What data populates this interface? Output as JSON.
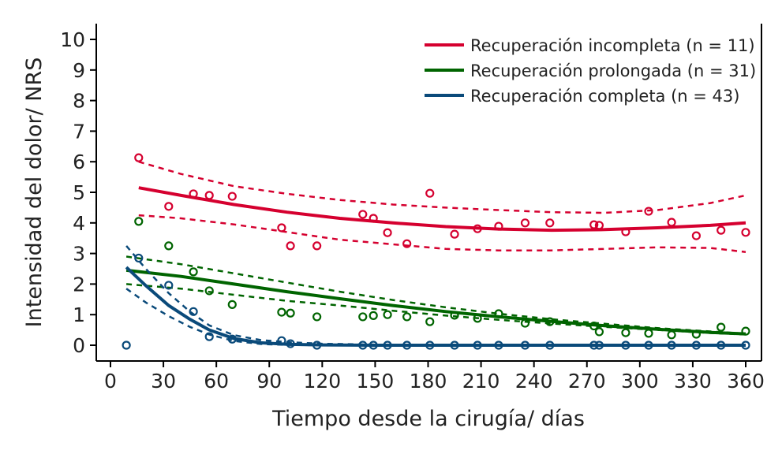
{
  "chart_data": {
    "type": "scatter",
    "title": "",
    "xlabel": "Tiempo desde la cirugía/ días",
    "ylabel": "Intensidad del dolor/ NRS",
    "xlim": [
      -8,
      372
    ],
    "ylim": [
      -0.5,
      10.5
    ],
    "xticks": [
      0,
      30,
      60,
      90,
      120,
      150,
      180,
      210,
      240,
      270,
      300,
      330,
      360
    ],
    "yticks": [
      0,
      1,
      2,
      3,
      4,
      5,
      6,
      7,
      8,
      9,
      10
    ],
    "grid": false,
    "legend_position": "top-right",
    "series": [
      {
        "name": "Recuperación incompleta (n = 11)",
        "color": "#d5002f",
        "points": [
          [
            16,
            6.13
          ],
          [
            33,
            4.54
          ],
          [
            47,
            4.95
          ],
          [
            56,
            4.9
          ],
          [
            69,
            4.87
          ],
          [
            97,
            3.84
          ],
          [
            102,
            3.25
          ],
          [
            117,
            3.25
          ],
          [
            143,
            4.28
          ],
          [
            149,
            4.15
          ],
          [
            157,
            3.68
          ],
          [
            168,
            3.32
          ],
          [
            181,
            4.97
          ],
          [
            195,
            3.63
          ],
          [
            208,
            3.81
          ],
          [
            220,
            3.89
          ],
          [
            235,
            4.0
          ],
          [
            249,
            4.0
          ],
          [
            274,
            3.94
          ],
          [
            277,
            3.92
          ],
          [
            292,
            3.71
          ],
          [
            305,
            4.38
          ],
          [
            318,
            4.02
          ],
          [
            332,
            3.58
          ],
          [
            346,
            3.76
          ],
          [
            360,
            3.69
          ]
        ],
        "fit": [
          [
            16,
            5.15
          ],
          [
            40,
            4.9
          ],
          [
            70,
            4.6
          ],
          [
            100,
            4.35
          ],
          [
            130,
            4.15
          ],
          [
            160,
            4.0
          ],
          [
            190,
            3.88
          ],
          [
            220,
            3.8
          ],
          [
            250,
            3.76
          ],
          [
            280,
            3.78
          ],
          [
            310,
            3.84
          ],
          [
            340,
            3.92
          ],
          [
            360,
            4.0
          ]
        ],
        "ci_upper": [
          [
            16,
            6.0
          ],
          [
            40,
            5.6
          ],
          [
            70,
            5.2
          ],
          [
            100,
            4.95
          ],
          [
            130,
            4.75
          ],
          [
            160,
            4.6
          ],
          [
            190,
            4.5
          ],
          [
            220,
            4.42
          ],
          [
            250,
            4.35
          ],
          [
            280,
            4.33
          ],
          [
            310,
            4.42
          ],
          [
            340,
            4.65
          ],
          [
            360,
            4.9
          ]
        ],
        "ci_lower": [
          [
            16,
            4.25
          ],
          [
            40,
            4.15
          ],
          [
            70,
            3.95
          ],
          [
            100,
            3.7
          ],
          [
            130,
            3.45
          ],
          [
            160,
            3.3
          ],
          [
            190,
            3.15
          ],
          [
            220,
            3.1
          ],
          [
            250,
            3.1
          ],
          [
            280,
            3.15
          ],
          [
            310,
            3.2
          ],
          [
            340,
            3.18
          ],
          [
            360,
            3.05
          ]
        ]
      },
      {
        "name": "Recuperación prolongada (n = 31)",
        "color": "#006400",
        "points": [
          [
            16,
            4.05
          ],
          [
            33,
            3.25
          ],
          [
            47,
            2.4
          ],
          [
            56,
            1.78
          ],
          [
            69,
            1.33
          ],
          [
            97,
            1.08
          ],
          [
            102,
            1.05
          ],
          [
            117,
            0.93
          ],
          [
            143,
            0.93
          ],
          [
            149,
            0.97
          ],
          [
            157,
            1.0
          ],
          [
            168,
            0.93
          ],
          [
            181,
            0.77
          ],
          [
            195,
            0.98
          ],
          [
            208,
            0.88
          ],
          [
            220,
            1.03
          ],
          [
            235,
            0.72
          ],
          [
            249,
            0.77
          ],
          [
            274,
            0.63
          ],
          [
            277,
            0.44
          ],
          [
            292,
            0.41
          ],
          [
            305,
            0.39
          ],
          [
            318,
            0.34
          ],
          [
            332,
            0.36
          ],
          [
            346,
            0.59
          ],
          [
            360,
            0.46
          ]
        ],
        "fit": [
          [
            9,
            2.45
          ],
          [
            40,
            2.25
          ],
          [
            70,
            2.0
          ],
          [
            100,
            1.75
          ],
          [
            130,
            1.52
          ],
          [
            160,
            1.3
          ],
          [
            190,
            1.1
          ],
          [
            220,
            0.93
          ],
          [
            250,
            0.78
          ],
          [
            280,
            0.64
          ],
          [
            310,
            0.52
          ],
          [
            340,
            0.42
          ],
          [
            360,
            0.37
          ]
        ],
        "ci_upper": [
          [
            9,
            2.9
          ],
          [
            40,
            2.65
          ],
          [
            70,
            2.35
          ],
          [
            100,
            2.05
          ],
          [
            130,
            1.75
          ],
          [
            160,
            1.48
          ],
          [
            190,
            1.24
          ],
          [
            220,
            1.03
          ],
          [
            250,
            0.85
          ],
          [
            280,
            0.7
          ],
          [
            310,
            0.56
          ],
          [
            340,
            0.45
          ],
          [
            360,
            0.38
          ]
        ],
        "ci_lower": [
          [
            9,
            2.0
          ],
          [
            40,
            1.85
          ],
          [
            70,
            1.65
          ],
          [
            100,
            1.45
          ],
          [
            130,
            1.3
          ],
          [
            160,
            1.13
          ],
          [
            190,
            0.97
          ],
          [
            220,
            0.83
          ],
          [
            250,
            0.71
          ],
          [
            280,
            0.6
          ],
          [
            310,
            0.5
          ],
          [
            340,
            0.4
          ],
          [
            360,
            0.35
          ]
        ]
      },
      {
        "name": "Recuperación completa (n = 43)",
        "color": "#0a4a7a",
        "points": [
          [
            9,
            0
          ],
          [
            16,
            2.85
          ],
          [
            33,
            1.96
          ],
          [
            47,
            1.1
          ],
          [
            56,
            0.28
          ],
          [
            69,
            0.2
          ],
          [
            97,
            0.15
          ],
          [
            102,
            0.05
          ],
          [
            117,
            0
          ],
          [
            143,
            0
          ],
          [
            149,
            0
          ],
          [
            157,
            0
          ],
          [
            168,
            0
          ],
          [
            181,
            0
          ],
          [
            195,
            0
          ],
          [
            208,
            0
          ],
          [
            220,
            0
          ],
          [
            235,
            0
          ],
          [
            249,
            0
          ],
          [
            274,
            0
          ],
          [
            277,
            0
          ],
          [
            292,
            0
          ],
          [
            305,
            0
          ],
          [
            318,
            0
          ],
          [
            332,
            0
          ],
          [
            346,
            0
          ],
          [
            360,
            0
          ]
        ],
        "fit": [
          [
            9,
            2.55
          ],
          [
            20,
            1.95
          ],
          [
            33,
            1.3
          ],
          [
            45,
            0.85
          ],
          [
            56,
            0.5
          ],
          [
            70,
            0.22
          ],
          [
            85,
            0.08
          ],
          [
            100,
            0.03
          ],
          [
            120,
            0.01
          ],
          [
            150,
            0
          ],
          [
            200,
            0
          ],
          [
            260,
            0
          ],
          [
            320,
            0
          ],
          [
            360,
            0
          ]
        ],
        "ci_upper": [
          [
            9,
            3.25
          ],
          [
            20,
            2.5
          ],
          [
            33,
            1.7
          ],
          [
            45,
            1.1
          ],
          [
            56,
            0.65
          ],
          [
            70,
            0.33
          ],
          [
            85,
            0.17
          ],
          [
            100,
            0.1
          ],
          [
            120,
            0.05
          ],
          [
            150,
            0.02
          ],
          [
            200,
            0
          ],
          [
            360,
            0
          ]
        ],
        "ci_lower": [
          [
            9,
            1.85
          ],
          [
            20,
            1.4
          ],
          [
            33,
            0.95
          ],
          [
            45,
            0.6
          ],
          [
            56,
            0.35
          ],
          [
            70,
            0.14
          ],
          [
            85,
            0.04
          ],
          [
            100,
            0.01
          ],
          [
            120,
            0
          ],
          [
            150,
            0
          ],
          [
            200,
            0
          ],
          [
            360,
            0
          ]
        ]
      }
    ]
  }
}
